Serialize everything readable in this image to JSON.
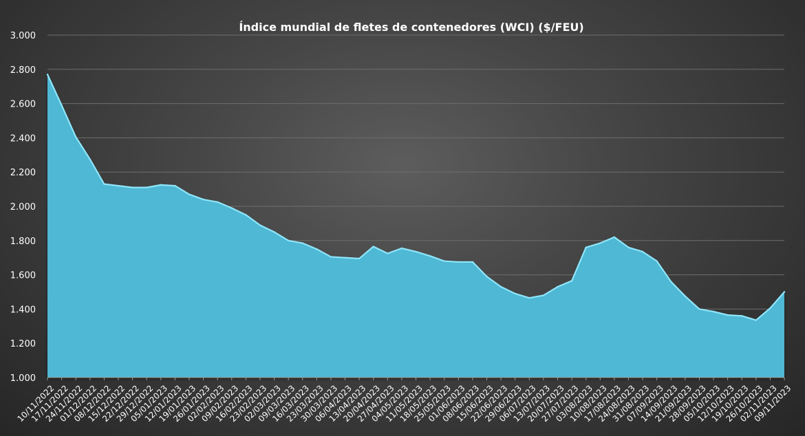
{
  "chart_data": {
    "type": "area",
    "title": "Índice mundial de fletes de contenedores (WCI) ($/FEU)",
    "xlabel": "",
    "ylabel": "",
    "ylim": [
      1000,
      3000
    ],
    "yticks": [
      "1.000",
      "1.200",
      "1.400",
      "1.600",
      "1.800",
      "2.000",
      "2.200",
      "2.400",
      "2.600",
      "2.800",
      "3.000"
    ],
    "grid": true,
    "colors": {
      "fill": "#4fb8d4",
      "line": "#8fe6fa"
    },
    "x": [
      "10/11/2022",
      "17/11/2022",
      "24/11/2022",
      "01/12/2022",
      "08/12/2022",
      "15/12/2022",
      "22/12/2022",
      "29/12/2022",
      "05/01/2023",
      "12/01/2023",
      "19/01/2023",
      "26/01/2023",
      "02/02/2023",
      "09/02/2023",
      "16/02/2023",
      "23/02/2023",
      "02/03/2023",
      "09/03/2023",
      "16/03/2023",
      "23/03/2023",
      "30/03/2023",
      "06/04/2023",
      "13/04/2023",
      "20/04/2023",
      "27/04/2023",
      "04/05/2023",
      "11/05/2023",
      "18/05/2023",
      "25/05/2023",
      "01/06/2023",
      "08/06/2023",
      "15/06/2023",
      "22/06/2023",
      "29/06/2023",
      "06/07/2023",
      "13/07/2023",
      "20/07/2023",
      "27/07/2023",
      "03/08/2023",
      "10/08/2023",
      "17/08/2023",
      "24/08/2023",
      "31/08/2023",
      "07/09/2023",
      "14/09/2023",
      "21/09/2023",
      "28/09/2023",
      "05/10/2023",
      "12/10/2023",
      "19/10/2023",
      "26/10/2023",
      "02/11/2023",
      "09/11/2023"
    ],
    "values": [
      2770,
      2590,
      2405,
      2275,
      2130,
      2120,
      2110,
      2110,
      2125,
      2120,
      2070,
      2040,
      2025,
      1990,
      1950,
      1890,
      1850,
      1800,
      1785,
      1750,
      1705,
      1700,
      1695,
      1765,
      1725,
      1755,
      1735,
      1710,
      1680,
      1675,
      1675,
      1590,
      1530,
      1490,
      1465,
      1480,
      1530,
      1565,
      1760,
      1785,
      1820,
      1760,
      1735,
      1680,
      1560,
      1475,
      1400,
      1385,
      1365,
      1360,
      1335,
      1405,
      1500
    ]
  }
}
